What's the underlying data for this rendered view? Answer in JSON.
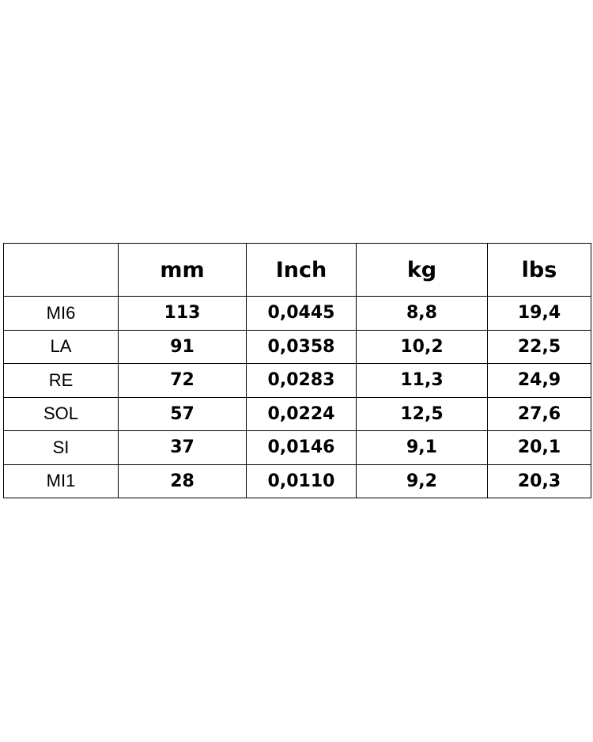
{
  "table": {
    "header": [
      "mm",
      "Inch",
      "kg",
      "lbs"
    ],
    "rows": [
      [
        "MI6",
        "113",
        "0,0445",
        "8,8",
        "19,4"
      ],
      [
        "LA",
        "91",
        "0,0358",
        "10,2",
        "22,5"
      ],
      [
        "RE",
        "72",
        "0,0283",
        "11,3",
        "24,9"
      ],
      [
        "SOL",
        "57",
        "0,0224",
        "12,5",
        "27,6"
      ],
      [
        "SI",
        "37",
        "0,0146",
        "9,1",
        "20,1"
      ],
      [
        "MI1",
        "28",
        "0,0110",
        "9,2",
        "20,3"
      ]
    ]
  }
}
